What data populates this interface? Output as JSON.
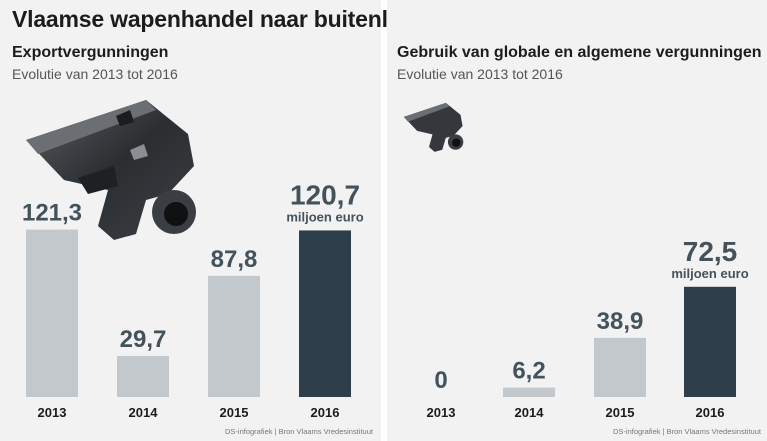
{
  "headline": "Vlaamse wapenhandel naar buitenland",
  "chart_data": [
    {
      "type": "bar",
      "title": "Exportvergunningen",
      "subtitle": "Evolutie van 2013 tot 2016",
      "categories": [
        "2013",
        "2014",
        "2015",
        "2016"
      ],
      "values": [
        121.3,
        29.7,
        87.8,
        120.7
      ],
      "value_labels": [
        "121,3",
        "29,7",
        "87,8",
        "120,7"
      ],
      "unit_label": "miljoen euro",
      "highlight_index": 3,
      "colors": {
        "bar": "#c2c8cc",
        "highlight": "#2e3f4b",
        "label": "#44525c"
      },
      "source": "DS-infografiek | Bron Vlaams Vredesinstituut"
    },
    {
      "type": "bar",
      "title": "Gebruik van globale en algemene vergunningen",
      "subtitle": "Evolutie van 2013 tot 2016",
      "categories": [
        "2013",
        "2014",
        "2015",
        "2016"
      ],
      "values": [
        0,
        6.2,
        38.9,
        72.5
      ],
      "value_labels": [
        "0",
        "6,2",
        "38,9",
        "72,5"
      ],
      "unit_label": "miljoen euro",
      "highlight_index": 3,
      "colors": {
        "bar": "#c2c8cc",
        "highlight": "#2e3f4b",
        "label": "#44525c"
      },
      "source": "DS-infografiek | Bron Vlaams Vredesinstituut"
    }
  ]
}
